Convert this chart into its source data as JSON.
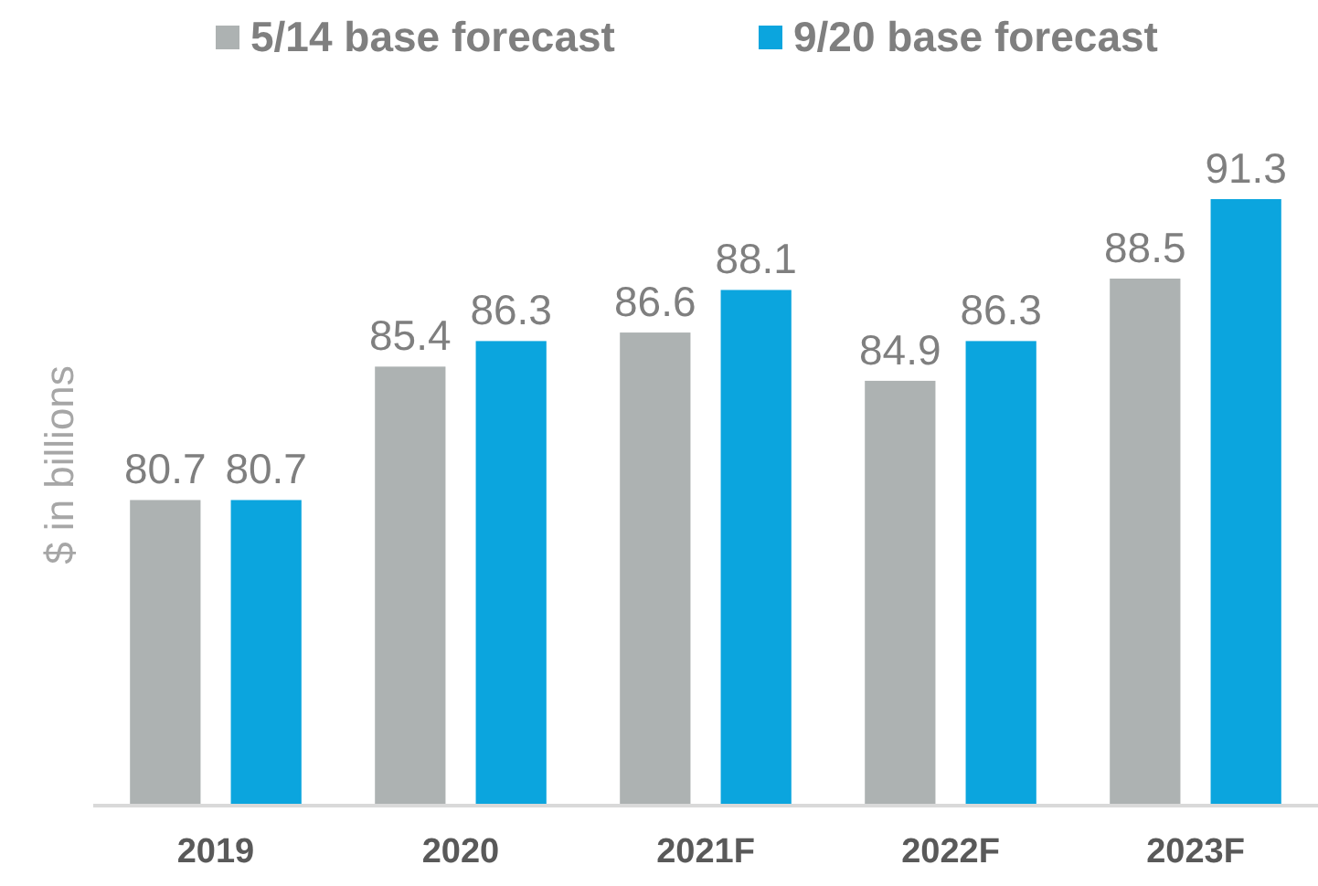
{
  "chart_data": {
    "type": "bar",
    "ylabel": "$ in billions",
    "categories": [
      "2019",
      "2020",
      "2021F",
      "2022F",
      "2023F"
    ],
    "series": [
      {
        "name": "5/14 base forecast",
        "color": "#adb2b2",
        "values": [
          80.7,
          85.4,
          86.6,
          84.9,
          88.5
        ]
      },
      {
        "name": "9/20 base forecast",
        "color": "#0ba5de",
        "values": [
          80.7,
          86.3,
          88.1,
          86.3,
          91.3
        ]
      }
    ],
    "ylim": [
      70,
      91.3
    ],
    "data_labels": true,
    "legend": "top"
  }
}
